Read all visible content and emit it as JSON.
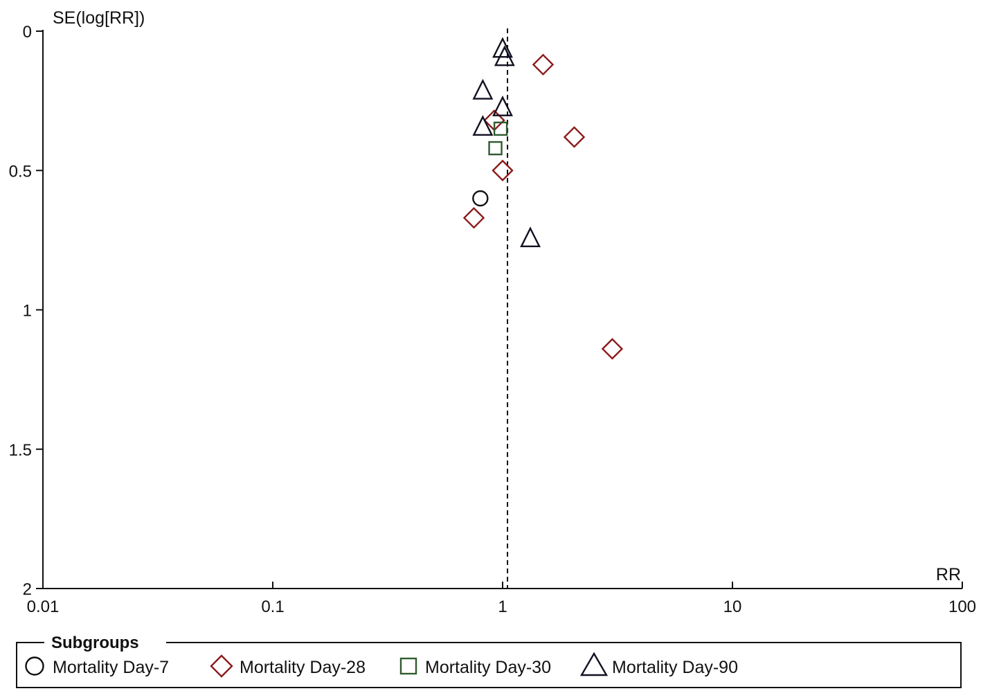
{
  "chart_data": {
    "type": "scatter",
    "subtype": "funnel-plot",
    "x_axis": {
      "label": "RR",
      "scale": "log",
      "range": [
        0.01,
        100
      ],
      "ticks": [
        0.01,
        0.1,
        1,
        10,
        100
      ],
      "tick_labels": [
        "0.01",
        "0.1",
        "1",
        "10",
        "100"
      ]
    },
    "y_axis": {
      "label": "SE(log[RR])",
      "reversed": true,
      "range": [
        0,
        2
      ],
      "ticks": [
        0,
        0.5,
        1,
        1.5,
        2
      ],
      "tick_labels": [
        "0",
        "0.5",
        "1",
        "1.5",
        "2"
      ]
    },
    "reference_line": {
      "x": 1.05,
      "style": "dashed"
    },
    "legend": {
      "title": "Subgroups",
      "position": "bottom"
    },
    "series": [
      {
        "name": "Mortality Day-7",
        "marker": "circle",
        "color": "#111111",
        "points": [
          {
            "rr": 0.8,
            "se": 0.6
          }
        ]
      },
      {
        "name": "Mortality Day-28",
        "marker": "diamond",
        "color": "#8b1a1a",
        "points": [
          {
            "rr": 1.5,
            "se": 0.12
          },
          {
            "rr": 2.05,
            "se": 0.38
          },
          {
            "rr": 0.92,
            "se": 0.32
          },
          {
            "rr": 1.0,
            "se": 0.5
          },
          {
            "rr": 0.75,
            "se": 0.67
          },
          {
            "rr": 3.0,
            "se": 1.14
          }
        ]
      },
      {
        "name": "Mortality Day-30",
        "marker": "square",
        "color": "#2f5a2f",
        "points": [
          {
            "rr": 0.98,
            "se": 0.35
          },
          {
            "rr": 0.93,
            "se": 0.42
          }
        ]
      },
      {
        "name": "Mortality Day-90",
        "marker": "triangle",
        "color": "#111122",
        "points": [
          {
            "rr": 1.0,
            "se": 0.06
          },
          {
            "rr": 1.02,
            "se": 0.09
          },
          {
            "rr": 0.82,
            "se": 0.21
          },
          {
            "rr": 1.0,
            "se": 0.27
          },
          {
            "rr": 0.82,
            "se": 0.34
          },
          {
            "rr": 1.32,
            "se": 0.74
          }
        ]
      }
    ]
  }
}
